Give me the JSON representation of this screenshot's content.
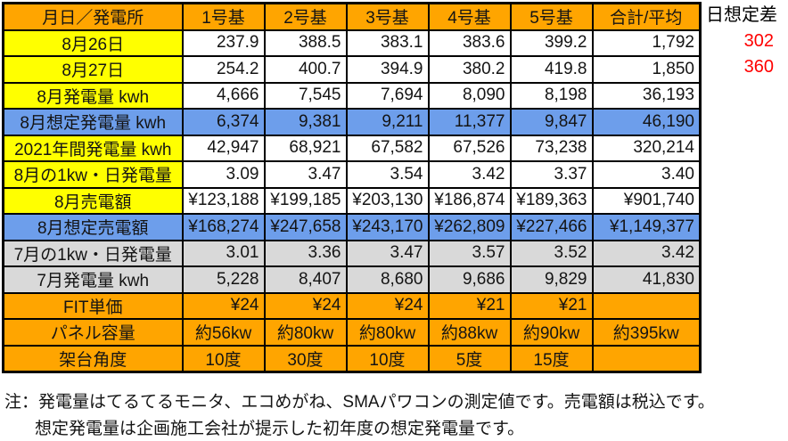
{
  "colors": {
    "header_orange": "#FFA500",
    "label_yellow": "#FFFF00",
    "estimate_blue": "#6D9EEB",
    "july_gray": "#D9D9D9",
    "diff_red": "#FF0000",
    "border_black": "#000000"
  },
  "table": {
    "columns": [
      "月日／発電所",
      "1号基",
      "2号基",
      "3号基",
      "4号基",
      "5号基",
      "合計/平均"
    ],
    "rows": [
      {
        "label": "8月26日",
        "label_style": "yellow",
        "value_style": "white",
        "value_align": "right",
        "values": [
          "237.9",
          "388.5",
          "383.1",
          "383.6",
          "399.2",
          "1,792"
        ]
      },
      {
        "label": "8月27日",
        "label_style": "yellow",
        "value_style": "white",
        "value_align": "right",
        "values": [
          "254.2",
          "400.7",
          "394.9",
          "380.2",
          "419.8",
          "1,850"
        ]
      },
      {
        "label": "8月発電量 kwh",
        "label_style": "yellow",
        "value_style": "white",
        "value_align": "right",
        "values": [
          "4,666",
          "7,545",
          "7,694",
          "8,090",
          "8,198",
          "36,193"
        ]
      },
      {
        "label": "8月想定発電量 kwh",
        "label_style": "blue",
        "value_style": "blue",
        "value_align": "right",
        "values": [
          "6,374",
          "9,381",
          "9,211",
          "11,377",
          "9,847",
          "46,190"
        ]
      },
      {
        "label": "2021年間発電量 kwh",
        "label_style": "yellow",
        "value_style": "white",
        "value_align": "right",
        "values": [
          "42,947",
          "68,921",
          "67,582",
          "67,526",
          "73,238",
          "320,214"
        ]
      },
      {
        "label": "8月の1kw・日発電量",
        "label_style": "yellow",
        "value_style": "white",
        "value_align": "right",
        "values": [
          "3.09",
          "3.47",
          "3.54",
          "3.42",
          "3.37",
          "3.40"
        ]
      },
      {
        "label": "8月売電額",
        "label_style": "yellow",
        "value_style": "white",
        "value_align": "right",
        "values": [
          "¥123,188",
          "¥199,185",
          "¥203,130",
          "¥186,874",
          "¥189,363",
          "¥901,740"
        ]
      },
      {
        "label": "8月想定売電額",
        "label_style": "blue",
        "value_style": "blue",
        "value_align": "right",
        "values": [
          "¥168,274",
          "¥247,658",
          "¥243,170",
          "¥262,809",
          "¥227,466",
          "¥1,149,377"
        ]
      },
      {
        "label": "7月の1kw・日発電量",
        "label_style": "gray",
        "value_style": "gray",
        "value_align": "right",
        "values": [
          "3.01",
          "3.36",
          "3.47",
          "3.57",
          "3.52",
          "3.42"
        ]
      },
      {
        "label": "7月発電量 kwh",
        "label_style": "gray",
        "value_style": "gray",
        "value_align": "right",
        "values": [
          "5,228",
          "8,407",
          "8,680",
          "9,686",
          "9,829",
          "41,830"
        ]
      },
      {
        "label": "FIT単価",
        "label_style": "orange",
        "value_style": "orange",
        "value_align": "right",
        "values": [
          "¥24",
          "¥24",
          "¥24",
          "¥21",
          "¥21",
          ""
        ]
      },
      {
        "label": "パネル容量",
        "label_style": "orange",
        "value_style": "orange",
        "value_align": "center",
        "values": [
          "約56kw",
          "約80kw",
          "約80kw",
          "約88kw",
          "約90kw",
          "約395kw"
        ]
      },
      {
        "label": "架台角度",
        "label_style": "orange",
        "value_style": "orange",
        "value_align": "center",
        "values": [
          "10度",
          "30度",
          "10度",
          "5度",
          "15度",
          ""
        ]
      }
    ]
  },
  "annotation": {
    "title": "日想定差",
    "values": [
      "302",
      "360"
    ]
  },
  "notes": {
    "line1": "注：発電量はてるてるモニタ、エコめがね、SMAパワコンの測定値です。売電額は税込です。",
    "line2": "想定発電量は企画施工会社が提示した初年度の想定発電量です。"
  }
}
